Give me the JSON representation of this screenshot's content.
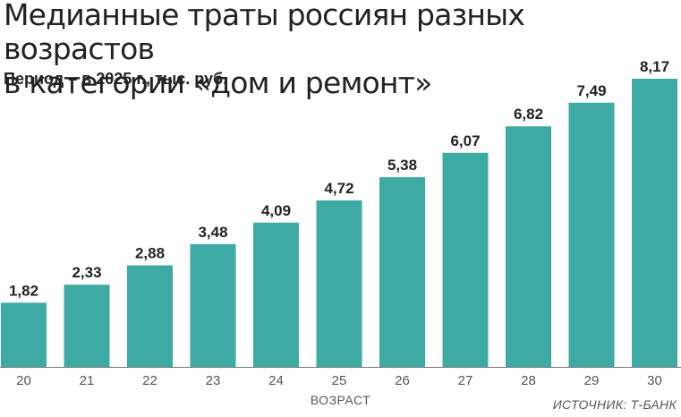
{
  "header": {
    "title_line1": "Медианные траты россиян разных возрастов",
    "title_line2": "в категории «дом и ремонт»",
    "subtitle": "Период – в 2025 г., тыс. руб."
  },
  "footer": {
    "source": "ИСТОЧНИК: Т-БАНК"
  },
  "colors": {
    "bar": "#3daaa3",
    "axis": "#777777",
    "text": "#222222"
  },
  "chart_data": {
    "type": "bar",
    "title": "Медианные траты россиян разных возрастов в категории «дом и ремонт»",
    "subtitle": "Период – в 2025 г., тыс. руб.",
    "xlabel": "ВОЗРАСТ",
    "ylabel": "",
    "categories": [
      "20",
      "21",
      "22",
      "23",
      "24",
      "25",
      "26",
      "27",
      "28",
      "29",
      "30"
    ],
    "values": [
      1.82,
      2.33,
      2.88,
      3.48,
      4.09,
      4.72,
      5.38,
      6.07,
      6.82,
      7.49,
      8.17
    ],
    "value_labels": [
      "1,82",
      "2,33",
      "2,88",
      "3,48",
      "4,09",
      "4,72",
      "5,38",
      "6,07",
      "6,82",
      "7,49",
      "8,17"
    ],
    "ylim": [
      0,
      8.17
    ],
    "grid": false,
    "legend": "none"
  }
}
